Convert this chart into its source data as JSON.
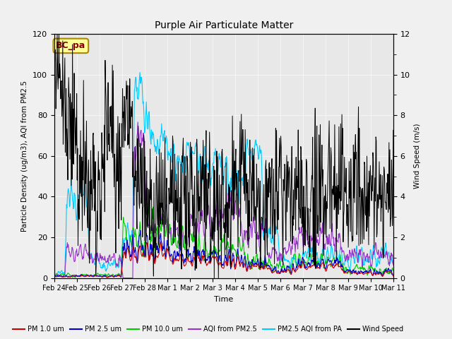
{
  "title": "Purple Air Particulate Matter",
  "xlabel": "Time",
  "ylabel_left": "Particle Density (ug/m3), AQI from PM2.5",
  "ylabel_right": "Wind Speed (m/s)",
  "ylim_left": [
    0,
    120
  ],
  "ylim_right": [
    0,
    12
  ],
  "fig_facecolor": "#f0f0f0",
  "plot_bg_color": "#e8e8e8",
  "annotation_text": "BC_pa",
  "tick_dates": [
    "Feb 24",
    "Feb 25",
    "Feb 26",
    "Feb 27",
    "Feb 28",
    "Mar 1",
    "Mar 2",
    "Mar 3",
    "Mar 4",
    "Mar 5",
    "Mar 6",
    "Mar 7",
    "Mar 8",
    "Mar 9",
    "Mar 10",
    "Mar 11"
  ],
  "colors": {
    "pm1": "#cc0000",
    "pm25": "#0000cc",
    "pm10": "#00cc00",
    "aqi_pm25": "#9933cc",
    "aqi_pa": "#00ccff",
    "wind": "#000000"
  }
}
